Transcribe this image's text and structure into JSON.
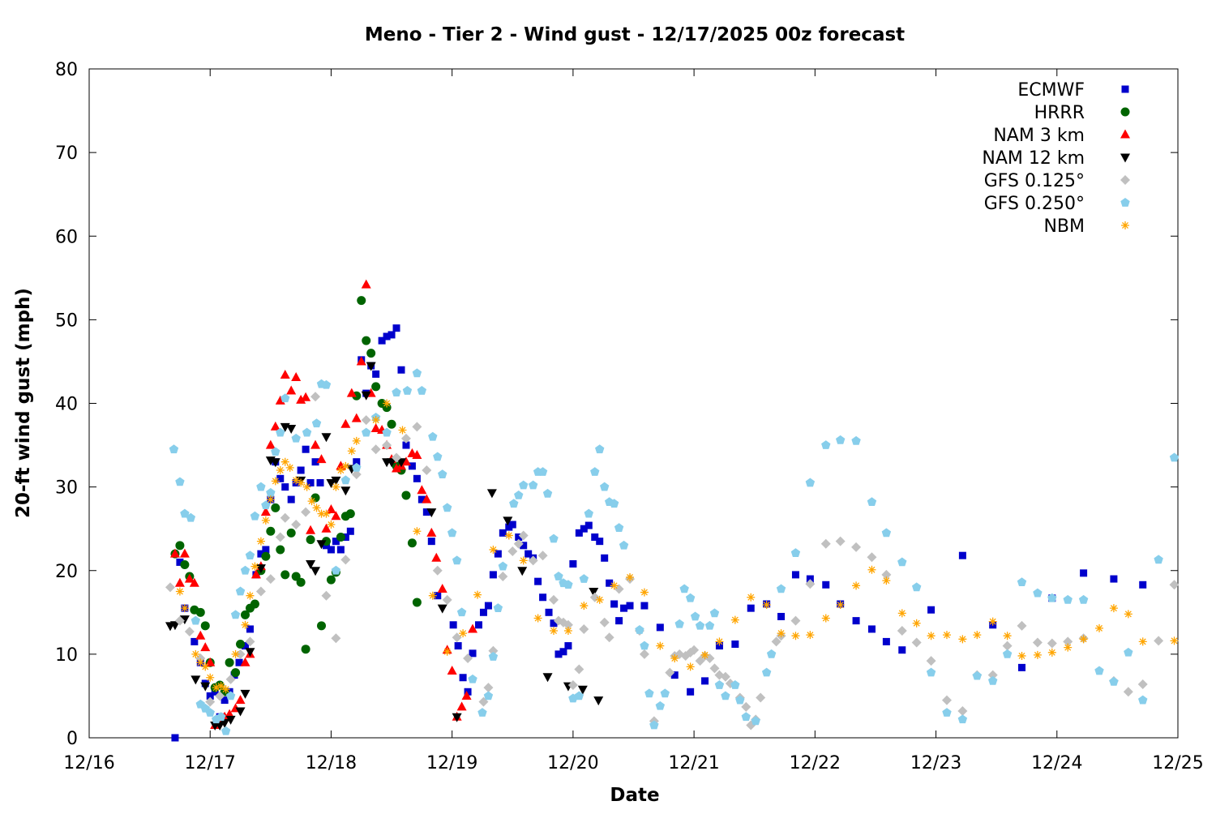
{
  "chart_data": {
    "type": "scatter",
    "title": "Meno - Tier 2 - Wind gust - 12/17/2025 00z forecast",
    "x_label": "Date",
    "y_label": "20-ft wind gust (mph)",
    "xlim": [
      0,
      9
    ],
    "xticks": [
      {
        "value": 0,
        "label": "12/16"
      },
      {
        "value": 1,
        "label": "12/17"
      },
      {
        "value": 2,
        "label": "12/18"
      },
      {
        "value": 3,
        "label": "12/19"
      },
      {
        "value": 4,
        "label": "12/20"
      },
      {
        "value": 5,
        "label": "12/21"
      },
      {
        "value": 6,
        "label": "12/22"
      },
      {
        "value": 7,
        "label": "12/23"
      },
      {
        "value": 8,
        "label": "12/24"
      },
      {
        "value": 9,
        "label": "12/25"
      }
    ],
    "ylim": [
      0,
      80
    ],
    "yticks": [
      0,
      10,
      20,
      30,
      40,
      50,
      60,
      70,
      80
    ],
    "legend": "top-right",
    "series": [
      {
        "name": "ECMWF",
        "color": "#0000cc",
        "marker": "square",
        "x": [
          0.71,
          0.75,
          0.79,
          0.87,
          0.92,
          0.96,
          1.0,
          1.04,
          1.08,
          1.12,
          1.16,
          1.2,
          1.24,
          1.29,
          1.33,
          1.38,
          1.42,
          1.46,
          1.5,
          1.54,
          1.58,
          1.62,
          1.67,
          1.71,
          1.75,
          1.79,
          1.83,
          1.87,
          1.91,
          1.96,
          2.0,
          2.04,
          2.08,
          2.12,
          2.16,
          2.21,
          2.25,
          2.29,
          2.33,
          2.37,
          2.42,
          2.46,
          2.5,
          2.54,
          2.58,
          2.62,
          2.67,
          2.71,
          2.75,
          2.79,
          2.83,
          2.88,
          3.01,
          3.05,
          3.09,
          3.13,
          3.17,
          3.22,
          3.26,
          3.3,
          3.34,
          3.38,
          3.42,
          3.47,
          3.5,
          3.55,
          3.59,
          3.63,
          3.67,
          3.71,
          3.75,
          3.8,
          3.84,
          3.88,
          3.92,
          3.96,
          4.0,
          4.05,
          4.09,
          4.13,
          4.18,
          4.22,
          4.26,
          4.3,
          4.34,
          4.38,
          4.42,
          4.47,
          4.59,
          4.72,
          4.84,
          4.97,
          5.09,
          5.21,
          5.34,
          5.47,
          5.6,
          5.72,
          5.84,
          5.96,
          6.09,
          6.21,
          6.34,
          6.47,
          6.59,
          6.72,
          6.96,
          7.22,
          7.47,
          7.71,
          7.96,
          8.22,
          8.47,
          8.71
        ],
        "values": [
          0,
          21,
          15.5,
          11.5,
          9,
          6.5,
          5,
          5.5,
          2.5,
          4.5,
          5.5,
          7.5,
          9,
          11,
          13,
          19.5,
          22,
          22.5,
          28.5,
          33,
          31,
          30,
          28.5,
          30.5,
          32,
          34.5,
          30.5,
          33,
          30.5,
          23,
          22.5,
          23.5,
          22.5,
          24,
          24.7,
          33,
          45.2,
          41.2,
          44.5,
          43.5,
          47.5,
          48,
          48.2,
          49,
          44,
          35,
          32.5,
          31,
          28.5,
          27,
          23.5,
          17,
          13.5,
          11,
          7.2,
          5.5,
          10.1,
          13.5,
          15,
          15.8,
          19.5,
          22,
          24.5,
          25.2,
          25.5,
          24,
          23,
          22,
          21.5,
          18.7,
          16.8,
          15,
          13.7,
          10,
          10.3,
          11,
          20.8,
          24.5,
          25,
          25.4,
          24,
          23.5,
          21.5,
          18.5,
          16,
          14,
          15.5,
          15.8,
          15.8,
          13.2,
          7.5,
          5.5,
          6.8,
          11,
          11.2,
          15.5,
          16,
          14.5,
          19.5,
          19,
          18.3,
          16,
          14,
          13,
          11.5,
          10.5,
          15.3,
          21.8,
          13.5,
          8.4,
          16.7,
          19.7,
          19,
          18.3
        ]
      },
      {
        "name": "HRRR",
        "color": "#006400",
        "marker": "circle",
        "x": [
          0.71,
          0.75,
          0.79,
          0.83,
          0.87,
          0.92,
          0.96,
          1.0,
          1.04,
          1.08,
          1.12,
          1.16,
          1.21,
          1.25,
          1.29,
          1.33,
          1.37,
          1.42,
          1.46,
          1.5,
          1.54,
          1.58,
          1.62,
          1.67,
          1.71,
          1.75,
          1.79,
          1.83,
          1.87,
          1.92,
          1.96,
          2.0,
          2.04,
          2.08,
          2.12,
          2.16,
          2.21,
          2.25,
          2.29,
          2.33,
          2.37,
          2.42,
          2.46,
          2.5,
          2.54,
          2.58,
          2.62,
          2.67,
          2.71
        ],
        "values": [
          22,
          23,
          20.7,
          19.3,
          15.3,
          15,
          13.4,
          9,
          6,
          6.3,
          5.5,
          9,
          7.8,
          11.2,
          14.7,
          15.5,
          16,
          20,
          21.7,
          24.7,
          27.5,
          22.5,
          19.5,
          24.5,
          19.3,
          18.6,
          10.6,
          23.7,
          28.7,
          13.4,
          23.5,
          18.9,
          19.8,
          24,
          26.5,
          26.8,
          40.9,
          52.3,
          47.5,
          46,
          42,
          40,
          39.5,
          37.5,
          32.5,
          32,
          29,
          23.3,
          16.2
        ]
      },
      {
        "name": "NAM 3 km",
        "color": "#ff0000",
        "marker": "triangle-up",
        "x": [
          0.71,
          0.75,
          0.79,
          0.83,
          0.87,
          0.92,
          0.96,
          1.0,
          1.04,
          1.08,
          1.12,
          1.16,
          1.21,
          1.25,
          1.29,
          1.33,
          1.38,
          1.42,
          1.46,
          1.5,
          1.54,
          1.58,
          1.62,
          1.67,
          1.71,
          1.75,
          1.79,
          1.83,
          1.87,
          1.92,
          1.96,
          2.0,
          2.04,
          2.08,
          2.12,
          2.17,
          2.21,
          2.25,
          2.29,
          2.33,
          2.37,
          2.42,
          2.46,
          2.5,
          2.54,
          2.58,
          2.62,
          2.67,
          2.71,
          2.75,
          2.79,
          2.83,
          2.87,
          2.92,
          2.96,
          3.0,
          3.04,
          3.08,
          3.12,
          3.17
        ],
        "values": [
          22,
          18.5,
          22,
          19,
          18.5,
          12.2,
          10.8,
          9,
          1.5,
          2,
          2.5,
          2.8,
          3.5,
          4.5,
          9,
          10,
          19.5,
          20.5,
          27,
          35,
          37.2,
          40.3,
          43.4,
          41.5,
          43.1,
          40.4,
          40.7,
          24.8,
          35,
          33.3,
          25,
          27.3,
          26.5,
          32.5,
          37.5,
          41.2,
          38.2,
          45,
          54.2,
          41.2,
          37,
          36.8,
          35,
          33.3,
          32.2,
          32.5,
          33,
          34,
          33.8,
          29.6,
          28.5,
          24.5,
          21.5,
          17.8,
          10.5,
          8,
          2.5,
          3.7,
          5,
          13
        ]
      },
      {
        "name": "NAM 12 km",
        "color": "#000000",
        "marker": "triangle-down",
        "x": [
          0.67,
          0.71,
          0.79,
          0.88,
          0.96,
          1.04,
          1.08,
          1.12,
          1.17,
          1.25,
          1.29,
          1.33,
          1.42,
          1.5,
          1.54,
          1.62,
          1.67,
          1.75,
          1.83,
          1.87,
          1.92,
          1.96,
          2.0,
          2.04,
          2.12,
          2.17,
          2.29,
          2.33,
          2.46,
          2.5,
          2.58,
          2.83,
          2.92,
          3.04,
          3.33,
          3.46,
          3.58,
          3.79,
          3.96,
          4.08,
          4.17,
          4.21
        ],
        "values": [
          13.4,
          13.5,
          14.2,
          7,
          6.2,
          1.5,
          1.5,
          1.8,
          2.2,
          3.2,
          5.3,
          10.3,
          20.3,
          33.2,
          33,
          37.2,
          37,
          30.8,
          20.8,
          20,
          23.2,
          36,
          30.5,
          30.8,
          29.6,
          32.2,
          41,
          44.5,
          33,
          33,
          33,
          27,
          15.5,
          2.5,
          29.3,
          26,
          20,
          7.3,
          6.2,
          5.8,
          17.5,
          4.5
        ]
      },
      {
        "name": "GFS 0.125°",
        "color": "#c0c0c0",
        "marker": "diamond",
        "x": [
          0.67,
          0.75,
          0.83,
          0.92,
          1.0,
          1.08,
          1.17,
          1.25,
          1.33,
          1.42,
          1.5,
          1.58,
          1.62,
          1.71,
          1.79,
          1.87,
          1.96,
          2.04,
          2.12,
          2.21,
          2.29,
          2.37,
          2.46,
          2.54,
          2.62,
          2.71,
          2.79,
          2.88,
          2.96,
          3.04,
          3.13,
          3.26,
          3.3,
          3.34,
          3.42,
          3.5,
          3.55,
          3.59,
          3.67,
          3.75,
          3.84,
          3.88,
          3.92,
          3.96,
          4.0,
          4.05,
          4.09,
          4.18,
          4.26,
          4.3,
          4.38,
          4.47,
          4.55,
          4.59,
          4.67,
          4.8,
          4.84,
          4.88,
          4.93,
          4.97,
          5.0,
          5.05,
          5.09,
          5.13,
          5.17,
          5.21,
          5.26,
          5.3,
          5.38,
          5.43,
          5.47,
          5.51,
          5.55,
          5.68,
          5.72,
          5.84,
          5.96,
          6.09,
          6.21,
          6.34,
          6.47,
          6.59,
          6.72,
          6.84,
          6.96,
          7.09,
          7.22,
          7.34,
          7.47,
          7.59,
          7.71,
          7.84,
          7.96,
          8.09,
          8.22,
          8.47,
          8.59,
          8.71,
          8.84,
          8.97
        ],
        "values": [
          18,
          14,
          12.7,
          9.5,
          4.3,
          5,
          7,
          10,
          11.5,
          17.5,
          19,
          24,
          26.3,
          25.5,
          27,
          40.8,
          17,
          11.9,
          21.3,
          31.5,
          38,
          34.5,
          35,
          33.5,
          35.8,
          37.2,
          32,
          20,
          16.5,
          12,
          9.5,
          4.3,
          6,
          10.4,
          19.3,
          22.3,
          23.2,
          24.2,
          21.2,
          21.8,
          16.5,
          14,
          13.8,
          13.5,
          6.3,
          8.2,
          13,
          16.8,
          13.8,
          12,
          17.8,
          19,
          12.8,
          10,
          2,
          7.8,
          9.8,
          10,
          9.8,
          10.2,
          10.5,
          9.2,
          9.8,
          9.5,
          8.3,
          7.5,
          7.3,
          6.5,
          4.8,
          3.7,
          1.5,
          2.2,
          4.8,
          11.5,
          12.2,
          14,
          18.4,
          23.2,
          23.5,
          22.8,
          21.6,
          19.5,
          12.8,
          11.4,
          9.2,
          4.5,
          3.2,
          7.5,
          7.5,
          11,
          13.4,
          11.4,
          11.3,
          11.5,
          11.9,
          6.8,
          5.5,
          6.4,
          11.6,
          18.3
        ]
      },
      {
        "name": "GFS 0.250°",
        "color": "#87ceeb",
        "marker": "pentagon",
        "x": [
          0.7,
          0.75,
          0.79,
          0.84,
          0.88,
          0.92,
          0.96,
          1.0,
          1.05,
          1.09,
          1.13,
          1.17,
          1.21,
          1.25,
          1.29,
          1.33,
          1.37,
          1.42,
          1.46,
          1.5,
          1.54,
          1.58,
          1.62,
          1.71,
          1.8,
          1.88,
          1.92,
          1.96,
          2.04,
          2.12,
          2.21,
          2.29,
          2.37,
          2.46,
          2.54,
          2.63,
          2.71,
          2.75,
          2.84,
          2.88,
          2.92,
          2.96,
          3.0,
          3.04,
          3.08,
          3.17,
          3.25,
          3.3,
          3.34,
          3.38,
          3.42,
          3.51,
          3.55,
          3.59,
          3.67,
          3.71,
          3.75,
          3.79,
          3.84,
          3.88,
          3.92,
          3.96,
          4.0,
          4.05,
          4.09,
          4.13,
          4.18,
          4.22,
          4.26,
          4.3,
          4.34,
          4.38,
          4.42,
          4.55,
          4.59,
          4.63,
          4.67,
          4.72,
          4.76,
          4.88,
          4.92,
          4.97,
          5.01,
          5.05,
          5.13,
          5.17,
          5.21,
          5.26,
          5.34,
          5.38,
          5.43,
          5.51,
          5.6,
          5.64,
          5.72,
          5.84,
          5.96,
          6.09,
          6.21,
          6.34,
          6.47,
          6.59,
          6.72,
          6.84,
          6.96,
          7.09,
          7.22,
          7.34,
          7.47,
          7.59,
          7.71,
          7.84,
          7.96,
          8.09,
          8.22,
          8.35,
          8.47,
          8.59,
          8.71,
          8.84,
          8.97
        ],
        "values": [
          34.5,
          30.6,
          26.8,
          26.3,
          14,
          4,
          3.5,
          3,
          2.2,
          2.5,
          0.8,
          5,
          14.7,
          17.5,
          20,
          21.8,
          26.5,
          30,
          27.8,
          29.3,
          34.2,
          36.5,
          40.6,
          35.8,
          36.5,
          37.6,
          42.3,
          42.2,
          20,
          30.8,
          32.3,
          36.5,
          38.3,
          36.5,
          41.3,
          41.5,
          43.6,
          41.5,
          36,
          33.6,
          31.5,
          27.5,
          24.5,
          21.2,
          15,
          7,
          3,
          5,
          9.7,
          15.5,
          20.5,
          28,
          29,
          30.2,
          30.2,
          31.8,
          31.8,
          29.2,
          23.8,
          19.3,
          18.5,
          18.3,
          4.7,
          5,
          19,
          26.8,
          31.8,
          34.5,
          30,
          28.2,
          28,
          25.1,
          23,
          12.9,
          11,
          5.3,
          1.5,
          3.8,
          5.3,
          13.6,
          17.8,
          16.7,
          14.5,
          13.4,
          13.4,
          14.9,
          6.3,
          5,
          6.3,
          4.5,
          2.5,
          2,
          7.8,
          10,
          17.8,
          22.1,
          30.5,
          35,
          35.6,
          35.5,
          28.2,
          24.5,
          21,
          18,
          7.8,
          3,
          2.2,
          7.4,
          6.8,
          10,
          18.6,
          17.3,
          16.7,
          16.5,
          16.5,
          8,
          6.7,
          10.2,
          4.5,
          21.3,
          33.5
        ]
      },
      {
        "name": "NBM",
        "color": "#ffa500",
        "marker": "asterisk",
        "x": [
          0.75,
          0.79,
          0.88,
          0.92,
          0.96,
          1.0,
          1.05,
          1.09,
          1.13,
          1.21,
          1.29,
          1.33,
          1.37,
          1.42,
          1.46,
          1.5,
          1.54,
          1.58,
          1.62,
          1.66,
          1.71,
          1.75,
          1.8,
          1.84,
          1.88,
          1.92,
          1.96,
          2.0,
          2.04,
          2.08,
          2.12,
          2.17,
          2.21,
          2.37,
          2.46,
          2.59,
          2.71,
          2.84,
          2.96,
          3.09,
          3.21,
          3.34,
          3.47,
          3.59,
          3.71,
          3.84,
          3.96,
          4.09,
          4.22,
          4.34,
          4.47,
          4.59,
          4.72,
          4.84,
          4.97,
          5.09,
          5.21,
          5.34,
          5.47,
          5.6,
          5.72,
          5.84,
          5.96,
          6.09,
          6.21,
          6.34,
          6.47,
          6.59,
          6.72,
          6.84,
          6.96,
          7.09,
          7.22,
          7.34,
          7.47,
          7.59,
          7.71,
          7.84,
          7.96,
          8.09,
          8.22,
          8.35,
          8.47,
          8.59,
          8.71,
          8.97
        ],
        "values": [
          17.5,
          15.5,
          10,
          9,
          8.5,
          7.2,
          6,
          6.2,
          5.8,
          10,
          13.5,
          17,
          20.5,
          23.5,
          26,
          28.5,
          30.7,
          32,
          33,
          32.3,
          30.8,
          30.5,
          30,
          28.3,
          27.5,
          26.8,
          26.8,
          25.5,
          30,
          32,
          32.5,
          34.3,
          35.5,
          38,
          40,
          36.8,
          24.7,
          17,
          10.3,
          12.5,
          17.1,
          22.5,
          24.2,
          21.2,
          14.3,
          12.8,
          12.8,
          15.8,
          16.5,
          18.2,
          19.2,
          17.4,
          11,
          9.5,
          8.5,
          9.9,
          11.5,
          14.1,
          16.8,
          15.9,
          12.5,
          12.2,
          12.3,
          14.3,
          15.9,
          18.2,
          20.1,
          18.8,
          14.9,
          13.7,
          12.2,
          12.3,
          11.8,
          12.3,
          13.9,
          12.2,
          9.8,
          9.9,
          10.2,
          10.8,
          11.8,
          13.1,
          15.5,
          14.8,
          11.5,
          11.6
        ]
      }
    ]
  }
}
